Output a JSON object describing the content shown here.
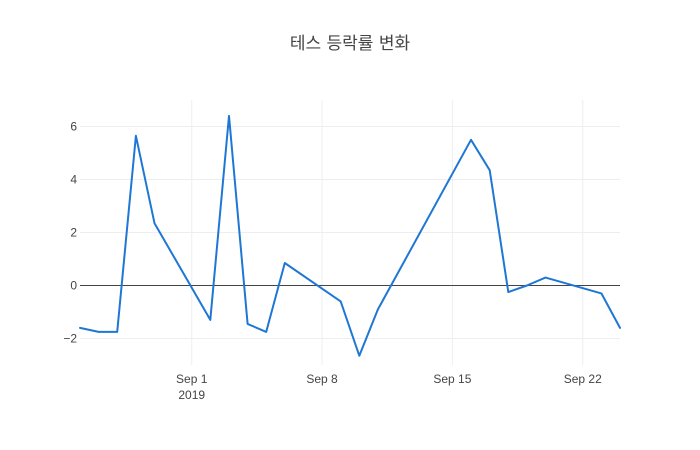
{
  "chart_data": {
    "type": "line",
    "title": "테스 등락률 변화",
    "xlabel": "",
    "ylabel": "",
    "x": [
      "2019-08-26",
      "2019-08-27",
      "2019-08-28",
      "2019-08-29",
      "2019-08-30",
      "2019-09-02",
      "2019-09-03",
      "2019-09-04",
      "2019-09-05",
      "2019-09-06",
      "2019-09-09",
      "2019-09-10",
      "2019-09-11",
      "2019-09-16",
      "2019-09-17",
      "2019-09-18",
      "2019-09-19",
      "2019-09-20",
      "2019-09-23",
      "2019-09-24"
    ],
    "series": [
      {
        "color": "#1f77d4",
        "values": [
          -1.6,
          -1.75,
          -1.75,
          5.65,
          2.35,
          -1.3,
          6.4,
          -1.45,
          -1.75,
          0.85,
          -0.6,
          -2.65,
          -0.9,
          5.5,
          4.35,
          -0.25,
          0.0,
          0.3,
          -0.3,
          -1.6
        ]
      }
    ],
    "xlim": [
      "2019-08-26",
      "2019-09-24"
    ],
    "ylim": [
      -3,
      7
    ],
    "yticks": [
      -2,
      0,
      2,
      4,
      6
    ],
    "ytick_labels": [
      "−2",
      "0",
      "2",
      "4",
      "6"
    ],
    "xticks": [
      "2019-09-01",
      "2019-09-08",
      "2019-09-15",
      "2019-09-22"
    ],
    "xtick_labels": [
      "Sep 1",
      "Sep 8",
      "Sep 15",
      "Sep 22"
    ],
    "xtick_year_label": "2019",
    "grid": true,
    "zero_line": true
  }
}
